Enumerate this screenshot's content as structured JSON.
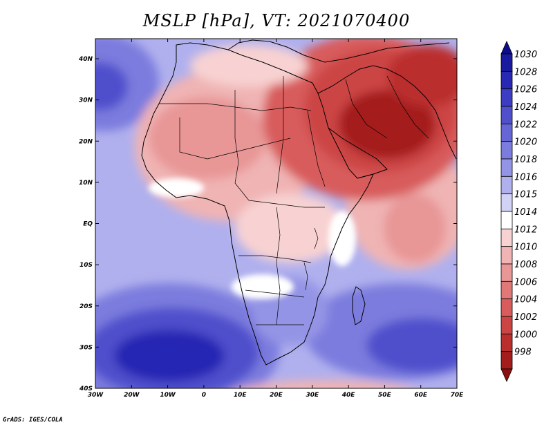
{
  "title": "MSLP [hPa], VT: 2021070400",
  "credit": "GrADS: IGES/COLA",
  "axes": {
    "lon_ticks": [
      "30W",
      "20W",
      "10W",
      "0",
      "10E",
      "20E",
      "30E",
      "40E",
      "50E",
      "60E",
      "70E"
    ],
    "lat_ticks": [
      "40N",
      "30N",
      "20N",
      "10N",
      "EQ",
      "10S",
      "20S",
      "30S",
      "40S"
    ]
  },
  "colorbar": {
    "labels": [
      "1030",
      "1028",
      "1026",
      "1024",
      "1022",
      "1020",
      "1018",
      "1016",
      "1015",
      "1014",
      "1012",
      "1010",
      "1008",
      "1006",
      "1004",
      "1002",
      "1000",
      "998"
    ],
    "colors": [
      "#1a1aa0",
      "#2828b4",
      "#3c3cc4",
      "#5050cc",
      "#6666d6",
      "#7c7cde",
      "#9494e6",
      "#b0b0ee",
      "#d2d2f6",
      "#ffffff",
      "#f8d2d2",
      "#f0b4b4",
      "#e89696",
      "#e07878",
      "#d85c5c",
      "#cc4444",
      "#bb2e2e",
      "#a41c1c"
    ],
    "top_arrow_color": "#0c0c8c",
    "bottom_arrow_color": "#8c1010"
  },
  "fields": {
    "ocean_high_atlantic_south": "#1a1aa0",
    "ocean_high_atlantic_north": "#5050cc",
    "thermal_low": "#a41c1c"
  }
}
